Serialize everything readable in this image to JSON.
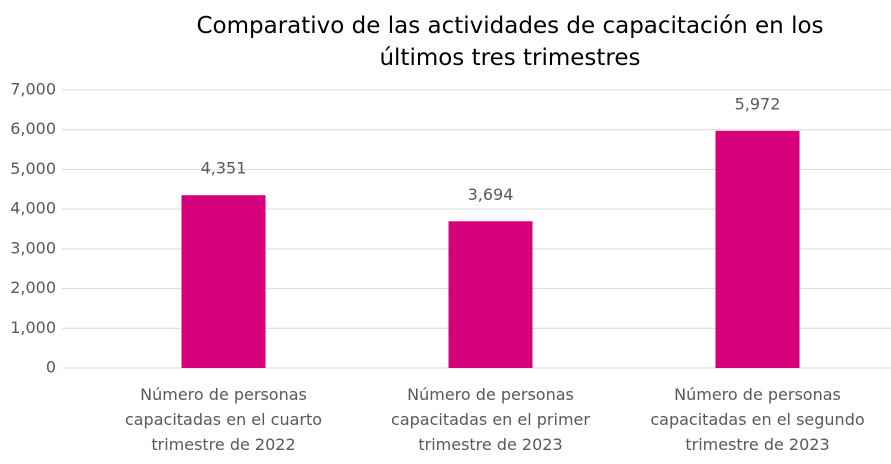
{
  "chart_data": {
    "type": "bar",
    "title": "Comparativo de las actividades de capacitación en los últimos tres trimestres",
    "categories": [
      "Número de personas capacitadas en el cuarto trimestre de 2022",
      "Número de personas capacitadas en el primer trimestre de 2023",
      "Número de personas capacitadas en el segundo trimestre de 2023"
    ],
    "values": [
      4351,
      3694,
      5972
    ],
    "value_labels": [
      "4,351",
      "3,694",
      "5,972"
    ],
    "color": "#d6007b",
    "ylim": [
      0,
      7000
    ],
    "yticks": [
      0,
      {
        "value": 1000,
        "label": "1,000"
      },
      {
        "value": 2000,
        "label": "2,000"
      },
      {
        "value": 3000,
        "label": "3,000"
      },
      {
        "value": 4000,
        "label": "4,000"
      },
      {
        "value": 5000,
        "label": "5,000"
      },
      {
        "value": 6000,
        "label": "6,000"
      },
      {
        "value": 7000,
        "label": "7,000"
      }
    ],
    "grid": true
  }
}
